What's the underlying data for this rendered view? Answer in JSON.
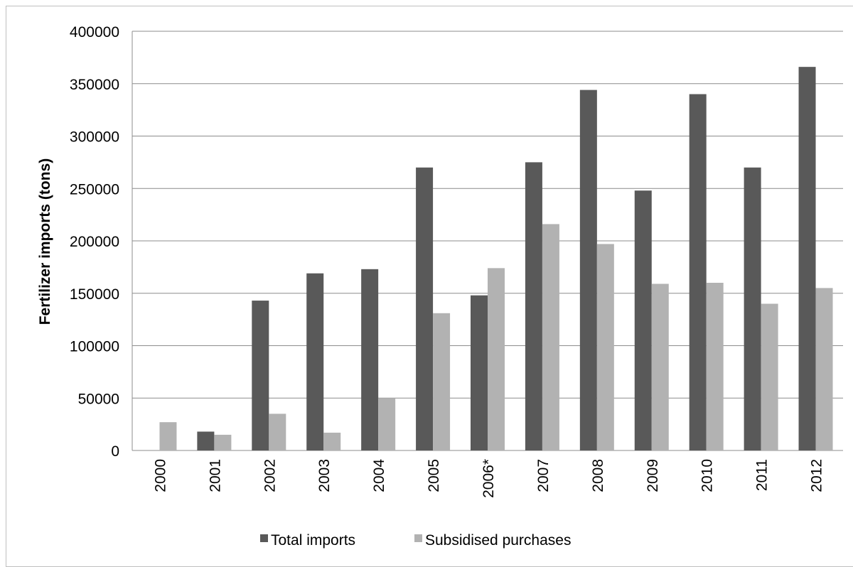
{
  "chart_data": {
    "type": "bar",
    "categories": [
      "2000",
      "2001",
      "2002",
      "2003",
      "2004",
      "2005",
      "2006*",
      "2007",
      "2008",
      "2009",
      "2010",
      "2011",
      "2012"
    ],
    "series": [
      {
        "name": "Total imports",
        "color": "#595959",
        "values": [
          null,
          18000,
          143000,
          169000,
          173000,
          270000,
          148000,
          275000,
          344000,
          248000,
          340000,
          270000,
          366000
        ]
      },
      {
        "name": "Subsidised purchases",
        "color": "#b2b2b2",
        "values": [
          27000,
          15000,
          35000,
          17000,
          50000,
          131000,
          174000,
          216000,
          197000,
          159000,
          160000,
          140000,
          155000
        ]
      }
    ],
    "title": "",
    "xlabel": "",
    "ylabel": "Fertilizer imports (tons)",
    "ylim": [
      0,
      400000
    ],
    "yticks": [
      0,
      50000,
      100000,
      150000,
      200000,
      250000,
      300000,
      350000,
      400000
    ],
    "grid": true,
    "legend": "bottom"
  }
}
